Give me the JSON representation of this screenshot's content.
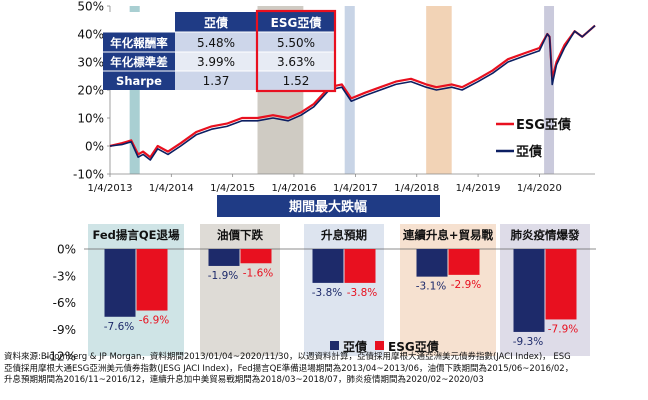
{
  "chart_data": [
    {
      "type": "line",
      "series": [
        {
          "name": "ESG亞債",
          "color": "#e8101f"
        },
        {
          "name": "亞債",
          "color": "#0c1f62"
        }
      ],
      "x_tick_labels": [
        "1/4/2013",
        "1/4/2014",
        "1/4/2015",
        "1/4/2016",
        "1/4/2017",
        "1/4/2018",
        "1/4/2019",
        "1/4/2020"
      ],
      "y_tick_labels": [
        "50%",
        "40%",
        "30%",
        "20%",
        "10%",
        "0%",
        "-10%"
      ],
      "ylim": [
        -10,
        50
      ],
      "xlim": [
        "2013-01-04",
        "2020-11-30"
      ],
      "legend": "right",
      "points_esg": [
        [
          "2013-01-04",
          0
        ],
        [
          "2013-03-15",
          1
        ],
        [
          "2013-05-10",
          2
        ],
        [
          "2013-06-20",
          -3
        ],
        [
          "2013-07-20",
          -2
        ],
        [
          "2013-09-01",
          -4
        ],
        [
          "2013-10-15",
          0
        ],
        [
          "2013-12-15",
          -2
        ],
        [
          "2014-03-01",
          1
        ],
        [
          "2014-06-01",
          5
        ],
        [
          "2014-09-01",
          7
        ],
        [
          "2014-12-01",
          8
        ],
        [
          "2015-03-01",
          10
        ],
        [
          "2015-06-01",
          10
        ],
        [
          "2015-09-01",
          11
        ],
        [
          "2015-12-01",
          10
        ],
        [
          "2016-02-15",
          12
        ],
        [
          "2016-05-01",
          15
        ],
        [
          "2016-08-01",
          21
        ],
        [
          "2016-10-15",
          22
        ],
        [
          "2016-12-10",
          17
        ],
        [
          "2017-03-01",
          19
        ],
        [
          "2017-06-01",
          21
        ],
        [
          "2017-09-01",
          23
        ],
        [
          "2017-12-01",
          24
        ],
        [
          "2018-03-01",
          22
        ],
        [
          "2018-05-01",
          21
        ],
        [
          "2018-07-31",
          22
        ],
        [
          "2018-10-01",
          21
        ],
        [
          "2019-01-04",
          24
        ],
        [
          "2019-04-01",
          27
        ],
        [
          "2019-07-01",
          31
        ],
        [
          "2019-10-01",
          33
        ],
        [
          "2020-01-04",
          35
        ],
        [
          "2020-02-20",
          40
        ],
        [
          "2020-03-05",
          39
        ],
        [
          "2020-03-20",
          24
        ],
        [
          "2020-04-15",
          30
        ],
        [
          "2020-06-01",
          36
        ],
        [
          "2020-08-01",
          41
        ],
        [
          "2020-09-15",
          39
        ],
        [
          "2020-11-30",
          43
        ]
      ],
      "points_asia": [
        [
          "2013-01-04",
          0
        ],
        [
          "2013-03-15",
          0.5
        ],
        [
          "2013-05-10",
          1.5
        ],
        [
          "2013-06-20",
          -4
        ],
        [
          "2013-07-20",
          -3
        ],
        [
          "2013-09-01",
          -5
        ],
        [
          "2013-10-15",
          -1
        ],
        [
          "2013-12-15",
          -3
        ],
        [
          "2014-03-01",
          0
        ],
        [
          "2014-06-01",
          4
        ],
        [
          "2014-09-01",
          6
        ],
        [
          "2014-12-01",
          7
        ],
        [
          "2015-03-01",
          9
        ],
        [
          "2015-06-01",
          9
        ],
        [
          "2015-09-01",
          10
        ],
        [
          "2015-12-01",
          9
        ],
        [
          "2016-02-15",
          11
        ],
        [
          "2016-05-01",
          14
        ],
        [
          "2016-08-01",
          20
        ],
        [
          "2016-10-15",
          21
        ],
        [
          "2016-12-10",
          16
        ],
        [
          "2017-03-01",
          18
        ],
        [
          "2017-06-01",
          20
        ],
        [
          "2017-09-01",
          22
        ],
        [
          "2017-12-01",
          23
        ],
        [
          "2018-03-01",
          21
        ],
        [
          "2018-05-01",
          20
        ],
        [
          "2018-07-31",
          21
        ],
        [
          "2018-10-01",
          20
        ],
        [
          "2019-01-04",
          23
        ],
        [
          "2019-04-01",
          26
        ],
        [
          "2019-07-01",
          30
        ],
        [
          "2019-10-01",
          32
        ],
        [
          "2020-01-04",
          34
        ],
        [
          "2020-02-20",
          40
        ],
        [
          "2020-03-05",
          39
        ],
        [
          "2020-03-20",
          22
        ],
        [
          "2020-04-15",
          29
        ],
        [
          "2020-06-01",
          35
        ],
        [
          "2020-08-01",
          41
        ],
        [
          "2020-09-15",
          39
        ],
        [
          "2020-11-30",
          43
        ]
      ],
      "shaded_periods": [
        {
          "start": "2013-05-01",
          "end": "2013-06-30",
          "color": "#a9cfd2"
        },
        {
          "start": "2015-06-01",
          "end": "2016-02-29",
          "color": "#cfcbc3"
        },
        {
          "start": "2016-11-01",
          "end": "2016-12-31",
          "color": "#c8d4e6"
        },
        {
          "start": "2018-03-01",
          "end": "2018-07-31",
          "color": "#f2d3b6"
        },
        {
          "start": "2020-02-01",
          "end": "2020-03-31",
          "color": "#cacadc"
        }
      ]
    },
    {
      "type": "bar",
      "title": "期間最大跌幅",
      "categories": [
        "Fed揚言QE退場",
        "油價下跌",
        "升息預期",
        "連續升息+貿易戰",
        "肺炎疫情爆發"
      ],
      "category_colors": [
        "#cfe4e6",
        "#dedbd6",
        "#dde4ef",
        "#f6e1d0",
        "#dedce8"
      ],
      "series": [
        {
          "name": "亞債",
          "color": "#1d2a6a",
          "values": [
            -7.6,
            -1.9,
            -3.8,
            -3.1,
            -9.3
          ]
        },
        {
          "name": "ESG亞債",
          "color": "#e8101f",
          "values": [
            -6.9,
            -1.6,
            -3.8,
            -2.9,
            -7.9
          ]
        }
      ],
      "value_labels": [
        [
          "-7.6%",
          "-6.9%"
        ],
        [
          "-1.9%",
          "-1.6%"
        ],
        [
          "-3.8%",
          "-3.8%"
        ],
        [
          "-3.1%",
          "-2.9%"
        ],
        [
          "-9.3%",
          "-7.9%"
        ]
      ],
      "y_tick_labels": [
        "0%",
        "-3%",
        "-6%",
        "-9%",
        "-12%"
      ],
      "ylim": [
        -12,
        0
      ],
      "legend": "bottom-right"
    }
  ],
  "stats_table": {
    "columns": [
      "",
      "亞債",
      "ESG亞債"
    ],
    "rows": [
      {
        "label": "年化報酬率",
        "asia": "5.48%",
        "esg": "5.50%"
      },
      {
        "label": "年化標準差",
        "asia": "3.99%",
        "esg": "3.63%"
      },
      {
        "label": "Sharpe",
        "asia": "1.37",
        "esg": "1.52"
      }
    ]
  },
  "source_lines": [
    "資料來源:Bloomberg & JP Morgan，資料期間2013/01/04~2020/11/30，以週資料計算，亞債採用摩根大通亞洲美元債券指數(JACI Index)， ESG",
    "亞債採用摩根大通ESG亞洲美元債券指數(JESG JACI Index)，Fed揚言QE準備退場期間為2013/04~2013/06，油價下跌期間為2015/06~2016/02，",
    "升息預期期間為2016/11~2016/12，連續升息加中美貿易戰期間為2018/03~2018/07，肺炎疫情期間為2020/02~2020/03"
  ]
}
